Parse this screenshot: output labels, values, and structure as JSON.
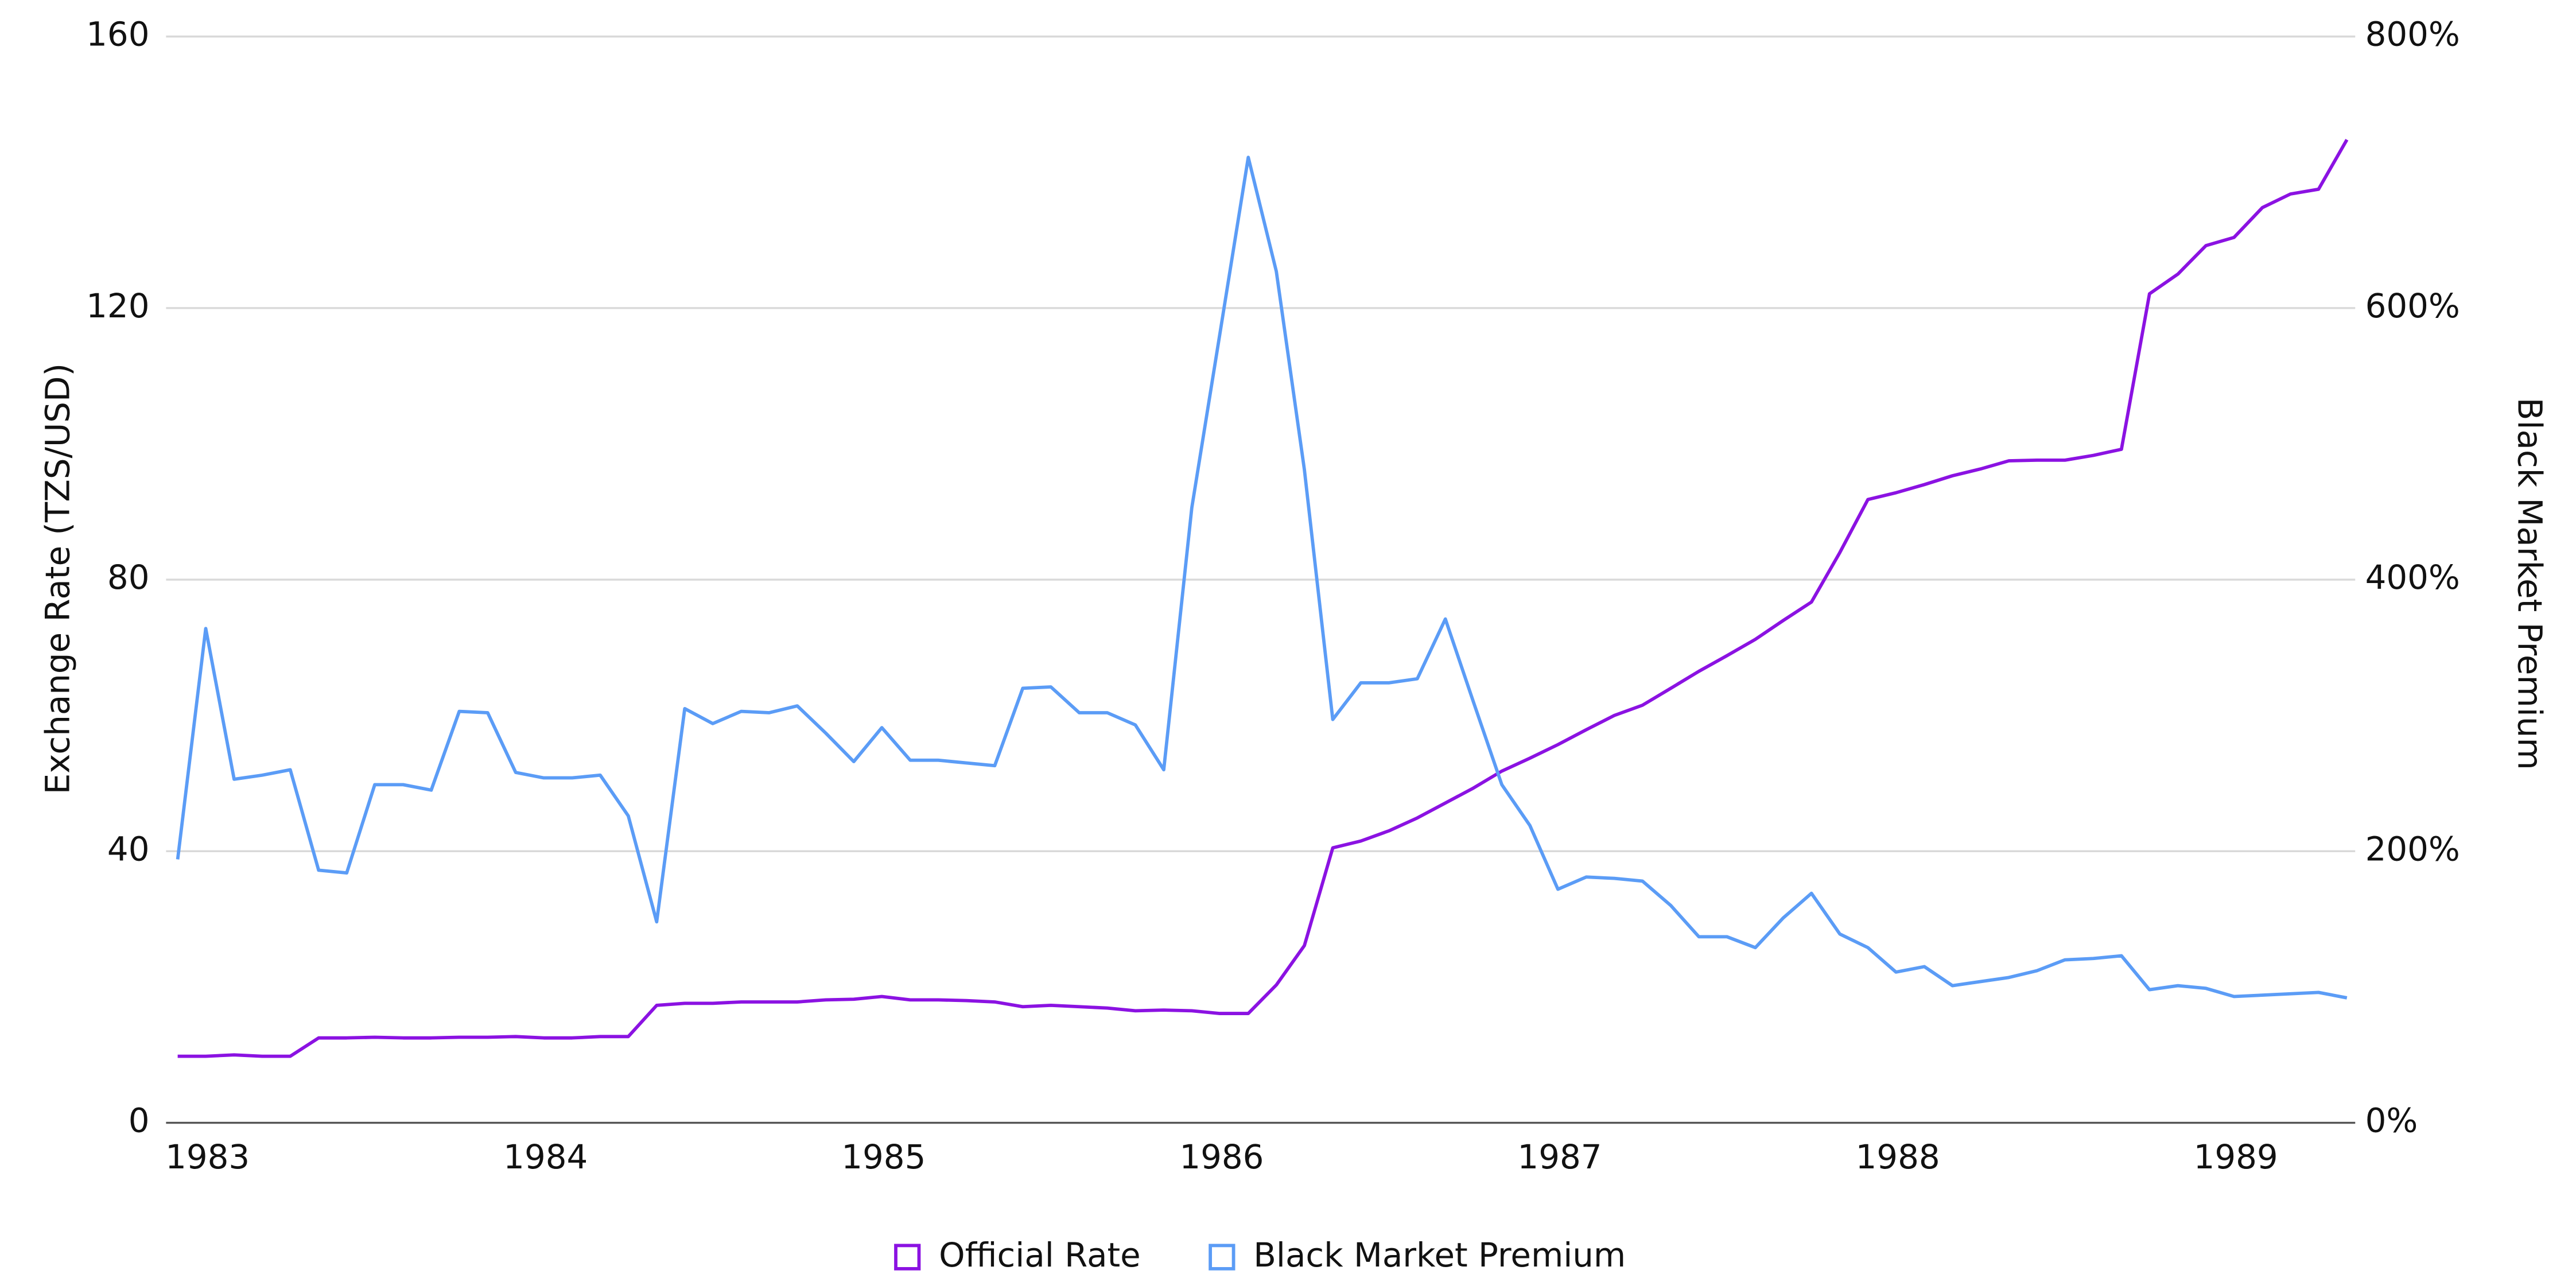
{
  "chart_data": {
    "type": "line",
    "y_label": "Exchange Rate (TZS/USD)",
    "y2_label": "Black Market Premium",
    "x": [
      1983,
      1983.083,
      1983.167,
      1983.25,
      1983.333,
      1983.417,
      1983.5,
      1983.583,
      1983.667,
      1983.75,
      1983.833,
      1983.917,
      1984,
      1984.083,
      1984.167,
      1984.25,
      1984.333,
      1984.417,
      1984.5,
      1984.583,
      1984.667,
      1984.75,
      1984.833,
      1984.917,
      1985,
      1985.083,
      1985.167,
      1985.25,
      1985.333,
      1985.417,
      1985.5,
      1985.583,
      1985.667,
      1985.75,
      1985.833,
      1985.917,
      1986,
      1986.083,
      1986.167,
      1986.25,
      1986.333,
      1986.417,
      1986.5,
      1986.583,
      1986.667,
      1986.75,
      1986.833,
      1986.917,
      1987,
      1987.083,
      1987.167,
      1987.25,
      1987.333,
      1987.417,
      1987.5,
      1987.583,
      1987.667,
      1987.75,
      1987.833,
      1987.917,
      1988,
      1988.083,
      1988.167,
      1988.25,
      1988.333,
      1988.417,
      1988.5,
      1988.583,
      1988.667,
      1988.75,
      1988.833,
      1988.917,
      1989,
      1989.083,
      1989.167,
      1989.25,
      1989.333,
      1989.417
    ],
    "xlim": [
      1983,
      1989.417
    ],
    "xticks": [
      1983,
      1984,
      1985,
      1986,
      1987,
      1988,
      1989
    ],
    "ylim": [
      0,
      160
    ],
    "yticks": [
      0,
      40,
      80,
      120,
      160
    ],
    "y2lim": [
      0,
      800
    ],
    "y2ticks": [
      {
        "value": 0,
        "label": "0%"
      },
      {
        "value": 200,
        "label": "200%"
      },
      {
        "value": 400,
        "label": "400%"
      },
      {
        "value": 600,
        "label": "600%"
      },
      {
        "value": 800,
        "label": "800%"
      }
    ],
    "grid": true,
    "legend": "bottom",
    "series": [
      {
        "name": "Official Rate",
        "color": "#8b12e2",
        "values": [
          9.8,
          9.8,
          10.0,
          9.8,
          9.8,
          12.5,
          12.5,
          12.6,
          12.5,
          12.5,
          12.6,
          12.6,
          12.7,
          12.5,
          12.5,
          12.7,
          12.7,
          17.3,
          17.6,
          17.6,
          17.8,
          17.8,
          17.8,
          18.1,
          18.2,
          18.6,
          18.1,
          18.1,
          18.0,
          17.8,
          17.1,
          17.3,
          17.1,
          16.9,
          16.5,
          16.6,
          16.5,
          16.1,
          16.1,
          20.3,
          26.1,
          40.5,
          41.5,
          43.0,
          44.9,
          47.1,
          49.3,
          51.8,
          53.7,
          55.7,
          57.9,
          60.0,
          61.5,
          64.0,
          66.5,
          68.8,
          71.2,
          74.0,
          76.7,
          84.0,
          91.8,
          92.8,
          94.0,
          95.3,
          96.3,
          97.5,
          97.6,
          97.6,
          98.3,
          99.2,
          122.1,
          125.0,
          129.2,
          130.4,
          134.8,
          136.8,
          137.5,
          144.8
        ]
      },
      {
        "name": "Black Market Premium",
        "color": "#5b9cf6",
        "axis": "y2",
        "values": [
          194,
          364,
          253,
          256,
          260,
          186,
          184,
          249,
          249,
          245,
          303,
          302,
          258,
          254,
          254,
          256,
          226,
          148,
          305,
          294,
          303,
          302,
          307,
          287,
          266,
          291,
          267,
          267,
          265,
          263,
          320,
          321,
          302,
          302,
          293,
          260,
          453,
          581,
          711,
          627,
          481,
          297,
          324,
          324,
          327,
          371,
          310,
          249,
          219,
          172,
          181,
          180,
          178,
          160,
          137,
          137,
          129,
          151,
          169,
          139,
          129,
          111,
          115,
          101,
          104,
          107,
          112,
          120,
          121,
          123,
          98,
          101,
          99,
          93,
          94,
          95,
          96,
          92
        ]
      }
    ]
  }
}
